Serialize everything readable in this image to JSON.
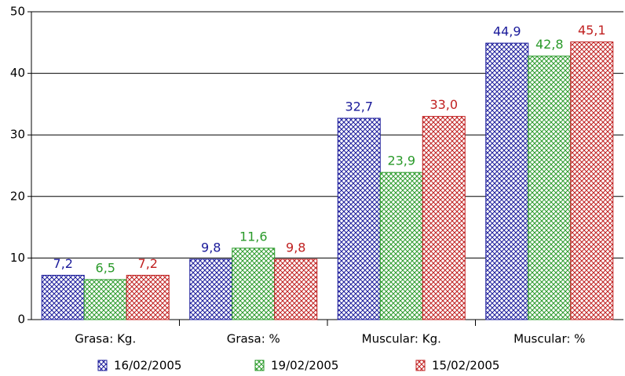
{
  "chart_data": {
    "type": "bar",
    "categories": [
      "Grasa: Kg.",
      "Grasa: %",
      "Muscular: Kg.",
      "Muscular: %"
    ],
    "series": [
      {
        "name": "16/02/2005",
        "color": "#1a1a9a",
        "values": [
          7.2,
          9.8,
          32.7,
          44.9
        ],
        "value_labels": [
          "7,2",
          "9,8",
          "32,7",
          "44,9"
        ]
      },
      {
        "name": "19/02/2005",
        "color": "#2a9a2a",
        "values": [
          6.5,
          11.6,
          23.9,
          42.8
        ],
        "value_labels": [
          "6,5",
          "11,6",
          "23,9",
          "42,8"
        ]
      },
      {
        "name": "15/02/2005",
        "color": "#c02020",
        "values": [
          7.2,
          9.8,
          33.0,
          45.1
        ],
        "value_labels": [
          "7,2",
          "9,8",
          "33,0",
          "45,1"
        ]
      }
    ],
    "ylim": [
      0,
      50
    ],
    "yticks": [
      0,
      10,
      20,
      30,
      40,
      50
    ],
    "grid": true,
    "legend": "bottom"
  }
}
